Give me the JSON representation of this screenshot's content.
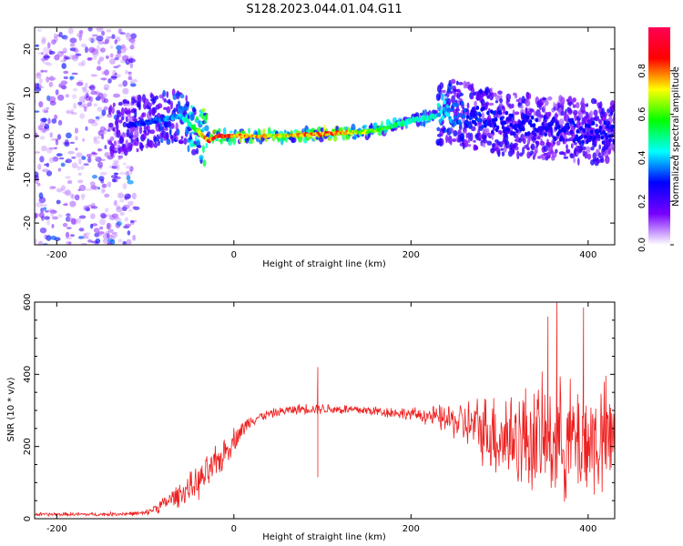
{
  "title": "S128.2023.044.01.04.G11",
  "colors": {
    "snr_line": "#ee2020",
    "frame": "#000000",
    "colormap": [
      "#ffffff",
      "#7700ff",
      "#0000ff",
      "#00ffff",
      "#00ff00",
      "#ffff00",
      "#ff0000",
      "#ff0055"
    ]
  },
  "chart_data": [
    {
      "type": "heatmap",
      "xlabel": "Height of straight line (km)",
      "ylabel": "Frequency (Hz)",
      "xlim": [
        -225,
        430
      ],
      "ylim": [
        -25,
        25
      ],
      "x_ticks": [
        -200,
        0,
        200,
        400
      ],
      "x_tick_labels": [
        "-200",
        "0",
        "200",
        "400"
      ],
      "y_ticks": [
        -20,
        -10,
        0,
        10,
        20
      ],
      "y_tick_labels": [
        "-20",
        "-10",
        "0",
        "10",
        "20"
      ],
      "colorbar": {
        "label": "Normalized spectral amplitude",
        "range": [
          0,
          1
        ],
        "ticks": [
          0.0,
          0.2,
          0.4,
          0.6,
          0.8
        ],
        "tick_labels": [
          "0.0",
          "0.2",
          "0.4",
          "0.6",
          "0.8"
        ]
      },
      "ridge": {
        "x": [
          -225,
          -150,
          -120,
          -100,
          -80,
          -60,
          -45,
          -35,
          -28,
          -20,
          0,
          50,
          100,
          150,
          175,
          200,
          225,
          240,
          260,
          300,
          350,
          400,
          430
        ],
        "frequency": [
          0,
          1,
          2.5,
          3,
          4,
          4.5,
          2,
          0,
          -1,
          0,
          0,
          0,
          0.5,
          1,
          2,
          3.5,
          4.5,
          6,
          5,
          3,
          2,
          1,
          0.5
        ],
        "strength": [
          0.1,
          0.2,
          0.3,
          0.35,
          0.4,
          0.45,
          0.6,
          0.8,
          0.9,
          1.0,
          0.85,
          0.8,
          0.9,
          0.75,
          0.6,
          0.55,
          0.5,
          0.45,
          0.35,
          0.3,
          0.3,
          0.3,
          0.3
        ]
      },
      "noise_region_x": [
        -225,
        -110
      ]
    },
    {
      "type": "line",
      "xlabel": "Height of straight line (km)",
      "ylabel": "SNR (10 * v/v)",
      "xlim": [
        -225,
        430
      ],
      "ylim": [
        0,
        600
      ],
      "x_ticks": [
        -200,
        0,
        200,
        400
      ],
      "x_tick_labels": [
        "-200",
        "0",
        "200",
        "400"
      ],
      "y_ticks": [
        0,
        200,
        400,
        600
      ],
      "y_tick_labels": [
        "0",
        "200",
        "400",
        "600"
      ],
      "series": [
        {
          "envelope_x": [
            -225,
            -150,
            -100,
            -80,
            -60,
            -40,
            -20,
            0,
            20,
            40,
            60,
            80,
            100,
            150,
            200,
            220,
            250,
            280,
            300,
            350,
            400,
            430
          ],
          "mean": [
            12,
            12,
            15,
            40,
            70,
            100,
            150,
            220,
            275,
            290,
            300,
            305,
            305,
            300,
            290,
            285,
            270,
            250,
            230,
            220,
            215,
            215
          ],
          "spread": [
            6,
            6,
            8,
            25,
            40,
            55,
            60,
            40,
            20,
            15,
            15,
            18,
            18,
            18,
            20,
            30,
            60,
            110,
            160,
            190,
            200,
            200
          ],
          "spikes": [
            [
              95,
              420
            ],
            [
              95,
              115
            ],
            [
              365,
              600
            ],
            [
              395,
              585
            ],
            [
              355,
              560
            ]
          ]
        }
      ]
    }
  ]
}
